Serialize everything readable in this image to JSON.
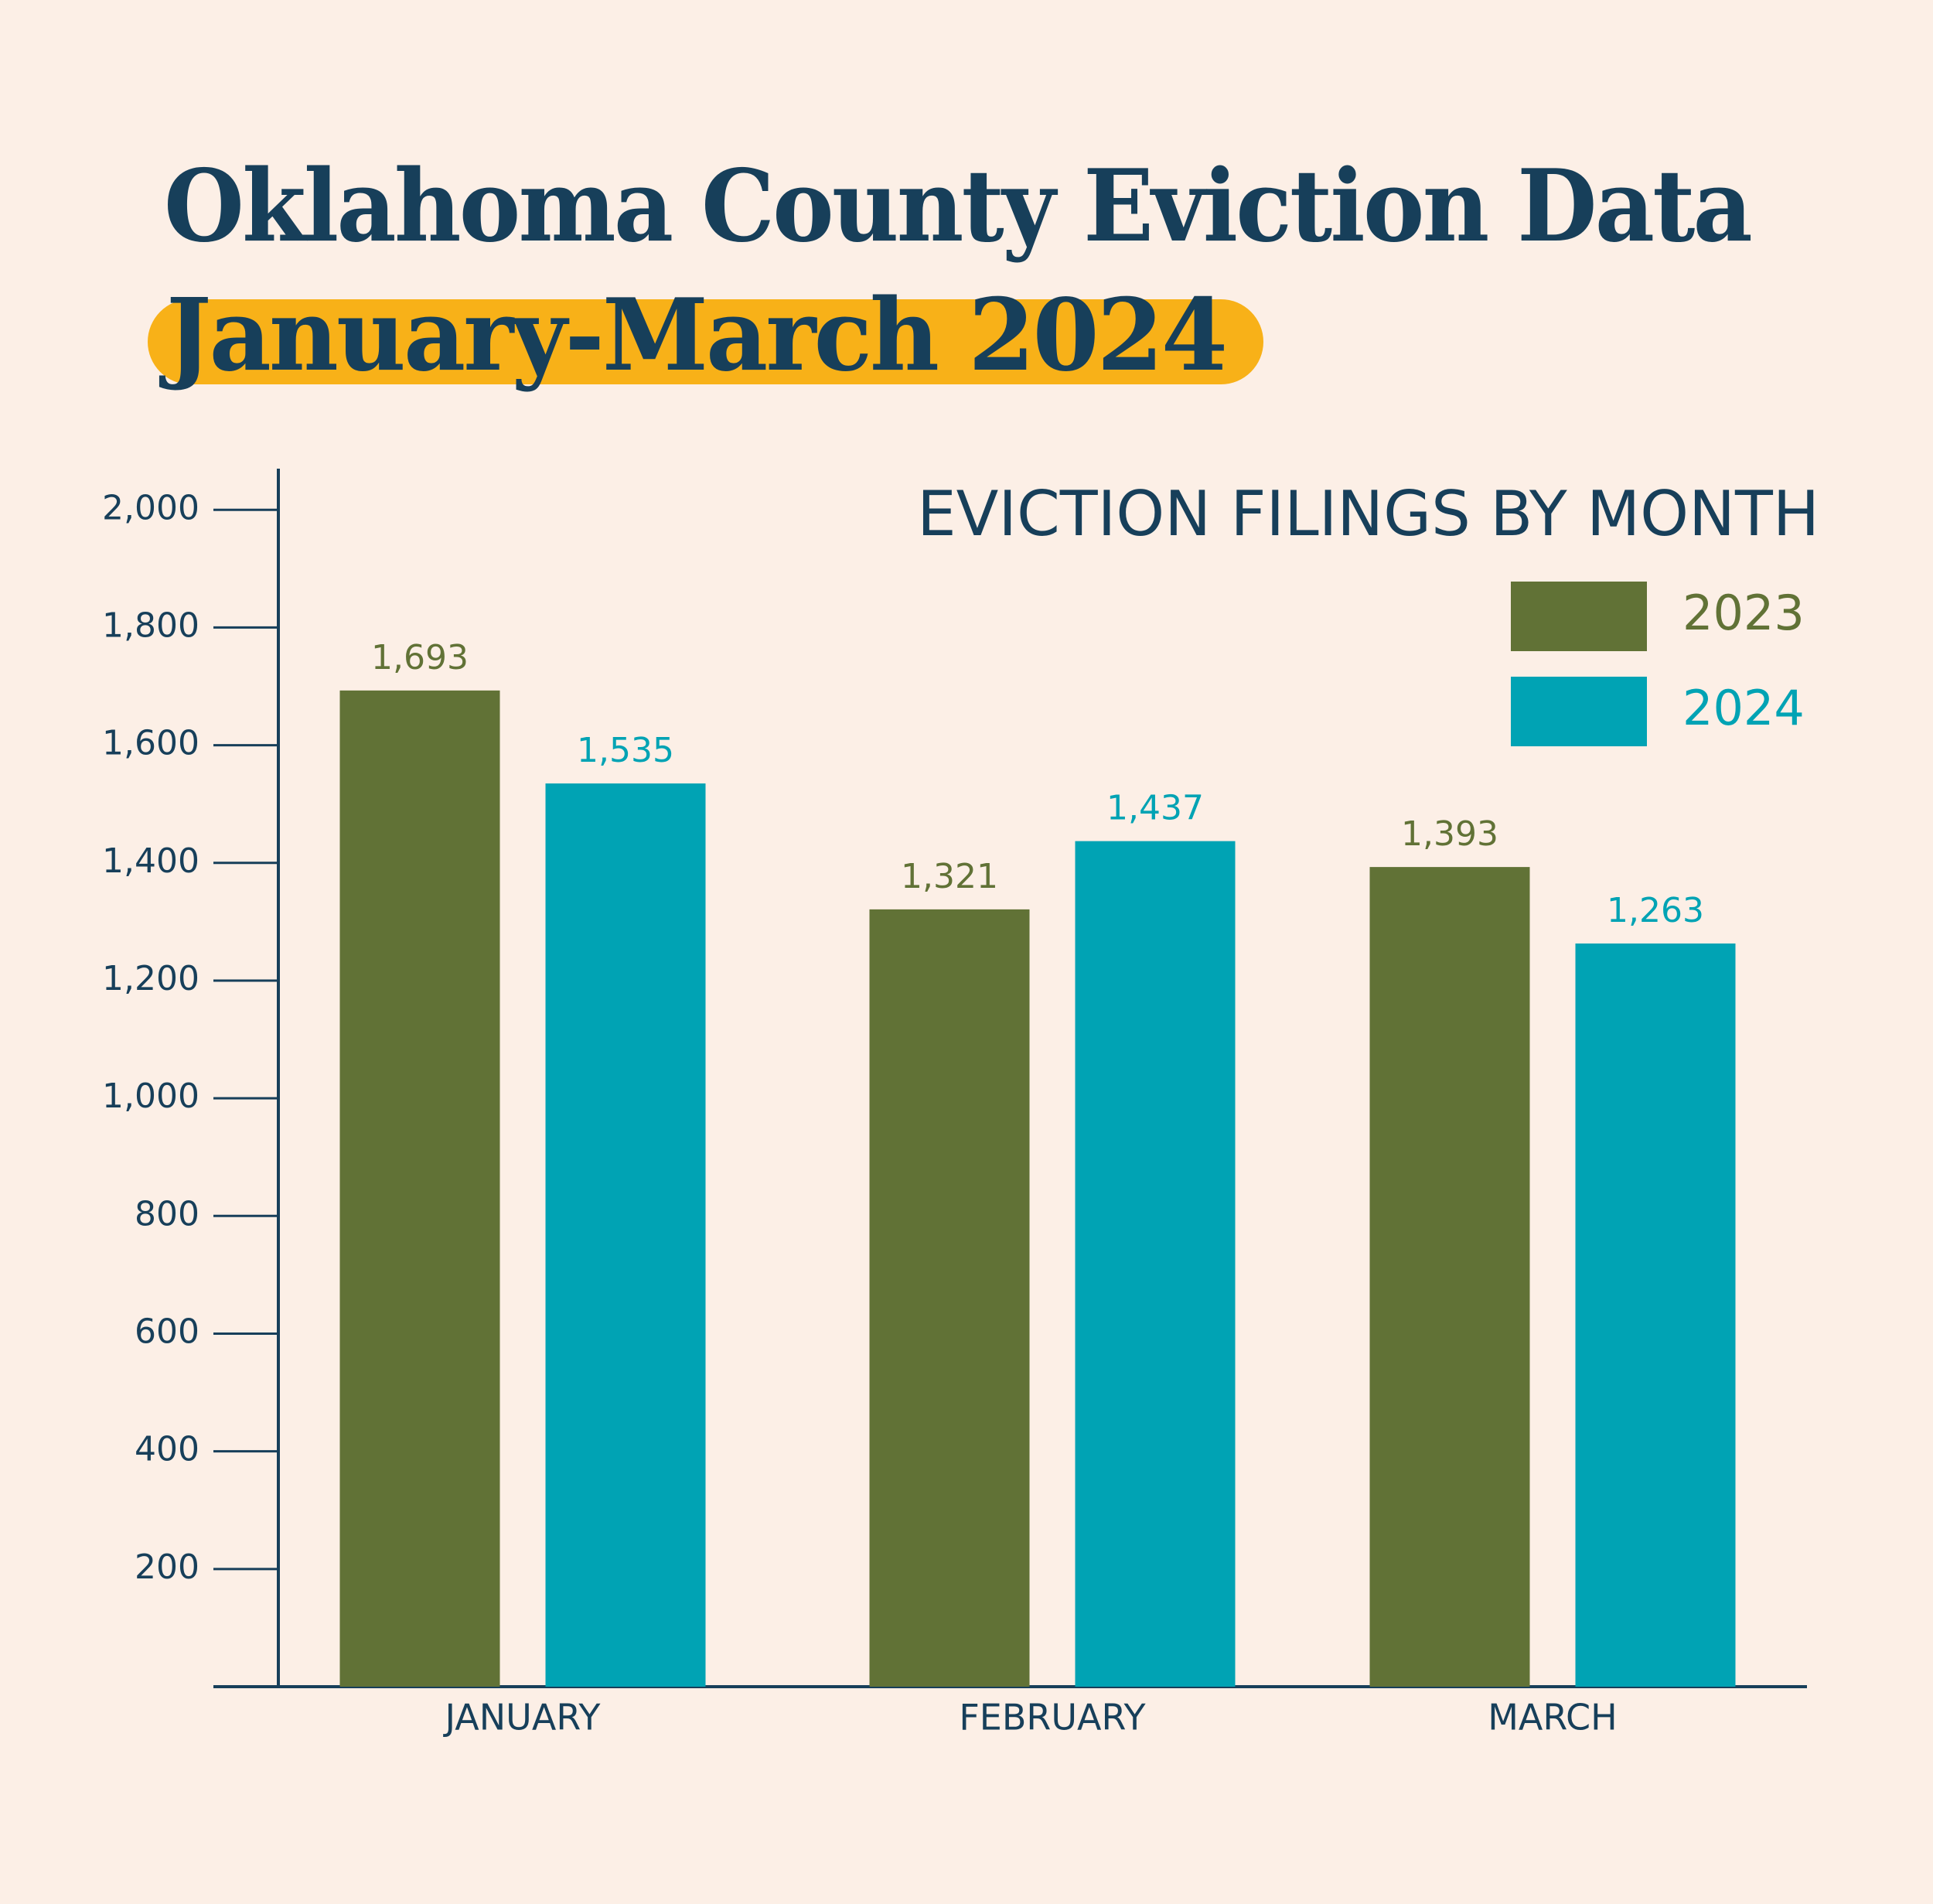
{
  "chart_data": {
    "type": "bar",
    "title": "Oklahoma County Eviction Data",
    "subtitle": "January-March 2024",
    "chart_label": "EVICTION FILINGS BY MONTH",
    "categories": [
      "JANUARY",
      "FEBRUARY",
      "MARCH"
    ],
    "series": [
      {
        "name": "2023",
        "color": "#617236",
        "values": [
          1693,
          1321,
          1393
        ],
        "value_labels": [
          "1,693",
          "1,321",
          "1,393"
        ]
      },
      {
        "name": "2024",
        "color": "#00a3b4",
        "values": [
          1535,
          1437,
          1263
        ],
        "value_labels": [
          "1,535",
          "1,437",
          "1,263"
        ]
      }
    ],
    "ylim": [
      0,
      2070
    ],
    "yticks": [
      200,
      400,
      600,
      800,
      {
        "value": 1000,
        "label": "1,000"
      },
      {
        "value": 1200,
        "label": "1,200"
      },
      {
        "value": 1400,
        "label": "1,400"
      },
      {
        "value": 1600,
        "label": "1,600"
      },
      {
        "value": 1800,
        "label": "1,800"
      },
      {
        "value": 2000,
        "label": "2,000"
      }
    ],
    "grid": false,
    "legend": "upper right"
  }
}
